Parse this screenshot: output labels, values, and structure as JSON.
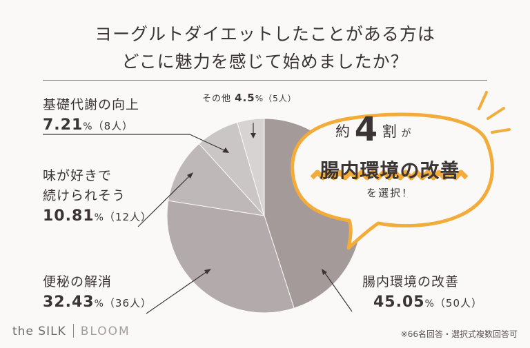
{
  "title": {
    "line1": "ヨーグルトダイエットしたことがある方は",
    "line2": "どこに魅力を感じて始めましたか？"
  },
  "chart_data": {
    "type": "pie",
    "slices": [
      {
        "label": "腸内環境の改善",
        "percent": 45.05,
        "percent_text": "45.05",
        "count_text": "（50人）",
        "color": "#a49a9a"
      },
      {
        "label": "便秘の解消",
        "percent": 32.43,
        "percent_text": "32.43",
        "count_text": "（36人）",
        "color": "#b3abab"
      },
      {
        "label": "味が好きで続けられそう",
        "label_line1": "味が好きで",
        "label_line2": "続けられそう",
        "percent": 10.81,
        "percent_text": "10.81",
        "count_text": "（12人）",
        "color": "#bfb8b8"
      },
      {
        "label": "基礎代謝の向上",
        "percent": 7.21,
        "percent_text": "7.21",
        "count_text": "（8人）",
        "color": "#cbc6c6"
      },
      {
        "label": "その他",
        "percent": 4.5,
        "percent_text": "4.5",
        "count_text": "（5人）",
        "color": "#d7d3d3"
      }
    ],
    "unit": "%"
  },
  "callout": {
    "prefix": "約",
    "number": "4",
    "suffix": "割",
    "particle": "が",
    "highlight": "腸内環境の改善",
    "tail": "を選択！",
    "accent": "#f3ab3a"
  },
  "footer": {
    "brand_left": "the SILK",
    "brand_right": "BLOOM",
    "note": "※66名回答・選択式複数回答可"
  }
}
